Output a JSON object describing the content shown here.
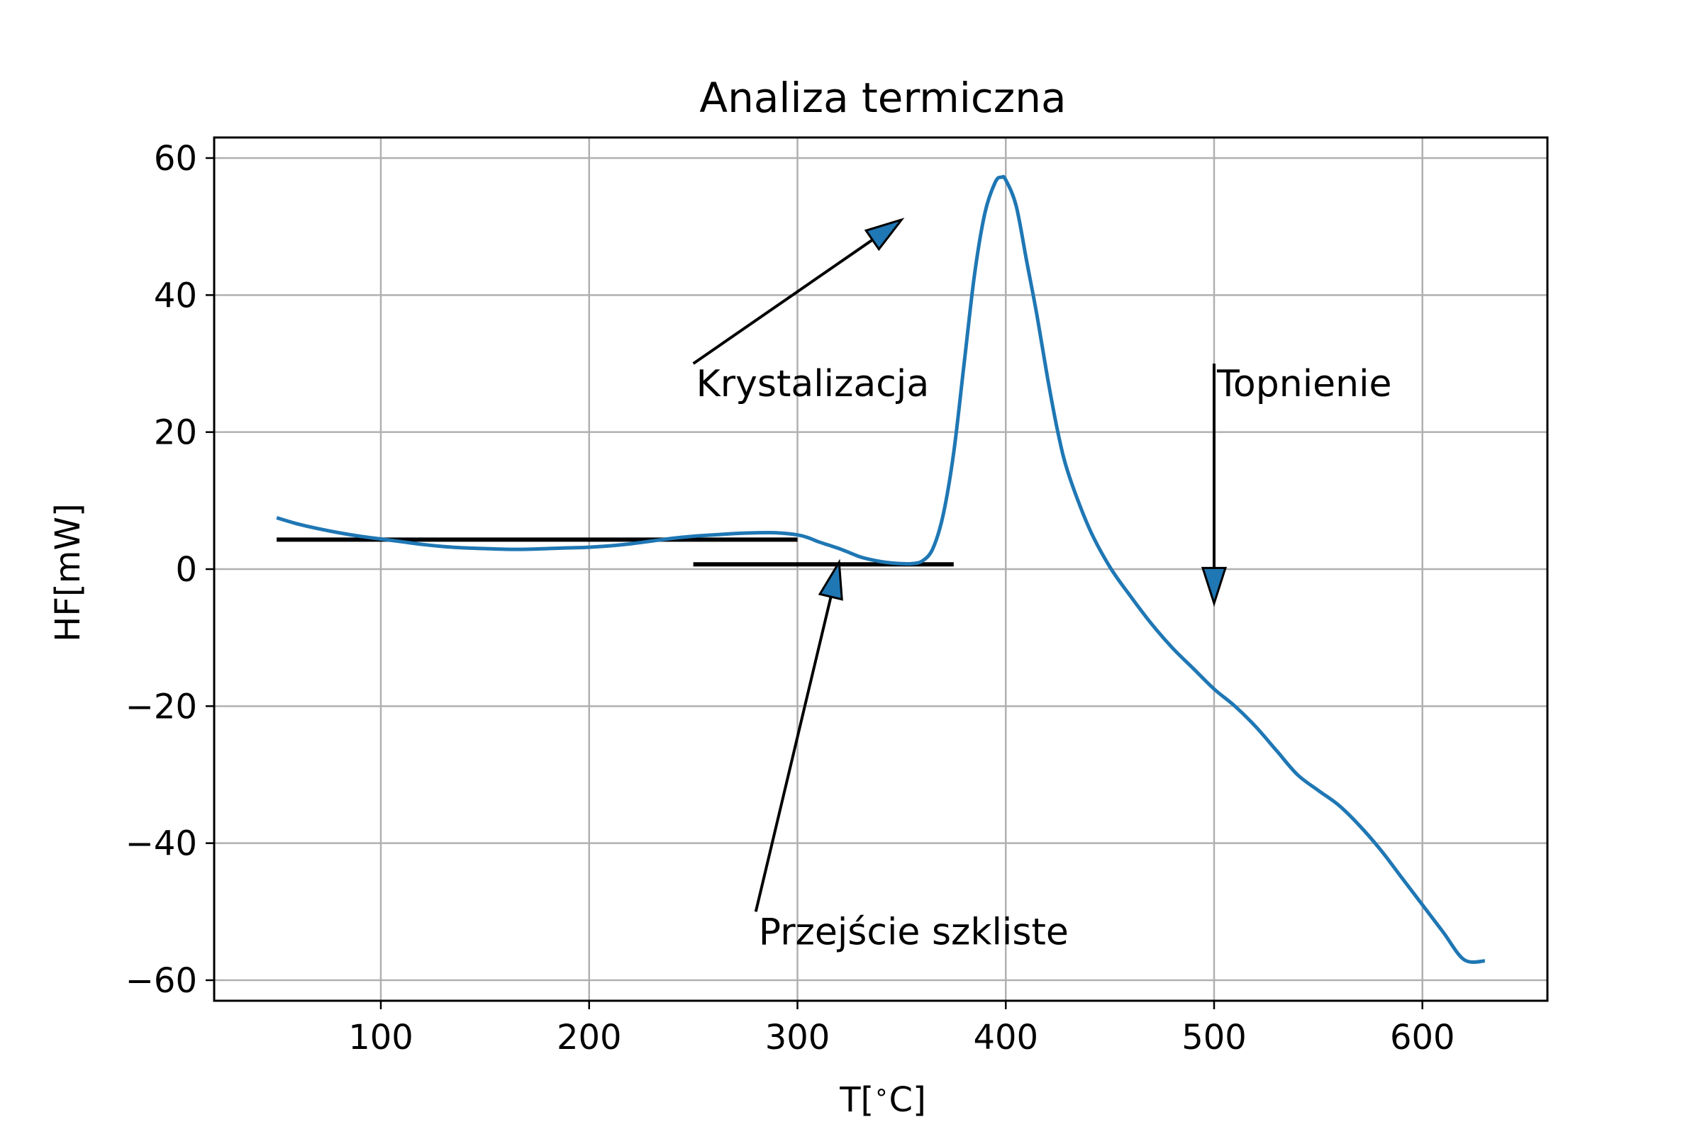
{
  "chart_data": {
    "type": "line",
    "title": "Analiza termiczna",
    "xlabel": "T[$^\\circ$C]",
    "ylabel": "HF[mW]",
    "xlim": [
      20,
      660
    ],
    "ylim": [
      -63,
      63
    ],
    "xticks": [
      100,
      200,
      300,
      400,
      500,
      600
    ],
    "yticks": [
      60,
      40,
      20,
      0,
      -20,
      -40,
      -60
    ],
    "xtick_labels": [
      "100",
      "200",
      "300",
      "400",
      "500",
      "600"
    ],
    "ytick_labels": [
      "60",
      "40",
      "20",
      "0",
      "−20",
      "−40",
      "−60"
    ],
    "grid": true,
    "line_color": "#1f77b4",
    "series": [
      {
        "x": [
          50,
          60,
          70,
          80,
          90,
          100,
          110,
          120,
          130,
          140,
          150,
          160,
          170,
          180,
          190,
          200,
          210,
          220,
          230,
          240,
          250,
          260,
          270,
          280,
          290,
          300,
          305,
          310,
          315,
          320,
          325,
          330,
          335,
          340,
          345,
          350,
          355,
          360,
          365,
          370,
          375,
          380,
          385,
          390,
          395,
          398,
          400,
          405,
          410,
          415,
          420,
          425,
          430,
          440,
          450,
          460,
          470,
          480,
          490,
          500,
          510,
          520,
          530,
          540,
          550,
          560,
          570,
          580,
          590,
          600,
          610,
          620,
          630
        ],
        "y": [
          7.5,
          6.6,
          5.9,
          5.3,
          4.8,
          4.4,
          4.0,
          3.6,
          3.3,
          3.1,
          3.0,
          2.9,
          2.9,
          3.0,
          3.1,
          3.2,
          3.4,
          3.7,
          4.1,
          4.5,
          4.8,
          5.0,
          5.2,
          5.3,
          5.3,
          5.0,
          4.6,
          4.0,
          3.5,
          3.0,
          2.4,
          1.8,
          1.4,
          1.1,
          0.9,
          0.8,
          0.8,
          1.2,
          3.0,
          8.0,
          17.0,
          30.0,
          43.0,
          52.0,
          56.5,
          57.2,
          56.8,
          53.0,
          45.0,
          37.0,
          28.0,
          20.0,
          14.0,
          6.0,
          0.3,
          -4.0,
          -8.0,
          -11.5,
          -14.5,
          -17.5,
          -20.0,
          -23.0,
          -26.5,
          -30.0,
          -32.3,
          -34.5,
          -37.5,
          -41.0,
          -45.0,
          -49.0,
          -53.0,
          -57.0,
          -57.2
        ]
      }
    ],
    "hlines": [
      {
        "y": 4.3,
        "x": [
          50,
          300
        ]
      },
      {
        "y": 0.7,
        "x": [
          250,
          375
        ]
      }
    ],
    "annotations": [
      {
        "text": "Krystalizacja",
        "text_xy": [
          250,
          30
        ],
        "arrow_to": [
          350,
          51
        ]
      },
      {
        "text": "Przejście szkliste",
        "text_xy": [
          280,
          -50
        ],
        "arrow_to": [
          320,
          1
        ]
      },
      {
        "text": "Topnienie",
        "text_xy": [
          500,
          30
        ],
        "arrow_to": [
          500,
          -5
        ]
      }
    ]
  }
}
